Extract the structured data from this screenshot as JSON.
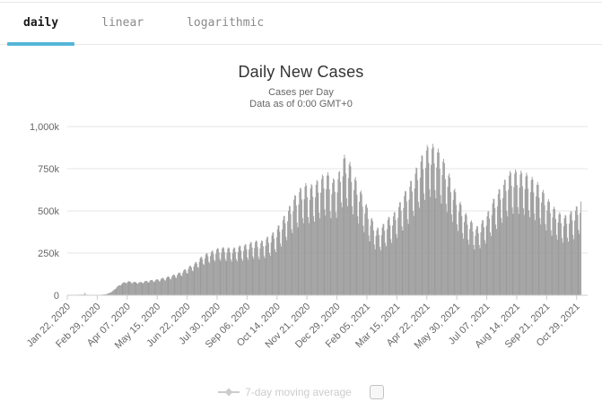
{
  "tabs": {
    "accent_color": "#55b6d8",
    "items": [
      {
        "label": "daily",
        "active": true
      },
      {
        "label": "linear",
        "active": false
      },
      {
        "label": "logarithmic",
        "active": false
      }
    ]
  },
  "chart": {
    "title": "Daily New Cases",
    "subtitle_line1": "Cases per Day",
    "subtitle_line2": "Data as of 0:00 GMT+0"
  },
  "legend": {
    "label": "7-day moving average",
    "marker_icon": "line-diamond-icon",
    "color": "#cccccc",
    "checkbox_checked": false
  },
  "chart_data": {
    "type": "bar",
    "title": "Daily New Cases",
    "subtitle": [
      "Cases per Day",
      "Data as of 0:00 GMT+0"
    ],
    "bar_color": "#999999",
    "grid_color": "#e6e6e6",
    "axis_color": "#cccccc",
    "label_color": "#666666",
    "ylim": [
      0,
      1000000
    ],
    "yticks": [
      {
        "value": 0,
        "label": "0"
      },
      {
        "value": 250000,
        "label": "250k"
      },
      {
        "value": 500000,
        "label": "500k"
      },
      {
        "value": 750000,
        "label": "750k"
      },
      {
        "value": 1000000,
        "label": "1,000k"
      }
    ],
    "x_start_date": "2020-01-22",
    "x_tick_interval_days": 38,
    "x_tick_labels": [
      "Jan 22, 2020",
      "Feb 29, 2020",
      "Apr 07, 2020",
      "May 15, 2020",
      "Jun 22, 2020",
      "Jul 30, 2020",
      "Sep 06, 2020",
      "Oct 14, 2020",
      "Nov 21, 2020",
      "Dec 29, 2020",
      "Feb 05, 2021",
      "Mar 15, 2021",
      "Apr 22, 2021",
      "May 30, 2021",
      "Jul 07, 2021",
      "Aug 14, 2021",
      "Sep 21, 2021",
      "Oct 29, 2021"
    ],
    "total_days": 652,
    "series": [
      {
        "name": "Daily New Cases",
        "type": "column",
        "color": "#999999",
        "sampling_note": "approx 7-day-average values in thousands, sampled every 7 days starting 2020-01-22",
        "weekly_avg_k": [
          0.5,
          2,
          3,
          4,
          2,
          1.8,
          2.5,
          6,
          20,
          50,
          72,
          80,
          76,
          74,
          80,
          85,
          88,
          95,
          102,
          112,
          122,
          138,
          158,
          175,
          205,
          225,
          238,
          252,
          257,
          255,
          252,
          262,
          268,
          278,
          288,
          282,
          302,
          322,
          355,
          405,
          455,
          515,
          555,
          585,
          575,
          595,
          625,
          645,
          605,
          625,
          735,
          705,
          625,
          555,
          485,
          410,
          350,
          365,
          405,
          425,
          475,
          535,
          585,
          655,
          720,
          780,
          790,
          770,
          720,
          645,
          565,
          495,
          435,
          395,
          355,
          385,
          425,
          495,
          545,
          595,
          645,
          655,
          650,
          640,
          620,
          595,
          555,
          505,
          465,
          435,
          415,
          435,
          455,
          505
        ],
        "weekday_factors": [
          1.1,
          1.14,
          1.12,
          1.0,
          0.8,
          0.74,
          0.98
        ],
        "weekday_amp_ramp_days": 250,
        "special_days_k": {
          "22": 15
        }
      },
      {
        "name": "7-day moving average",
        "type": "line",
        "color": "#cccccc",
        "visible": false
      }
    ],
    "legend_position": "bottom"
  }
}
